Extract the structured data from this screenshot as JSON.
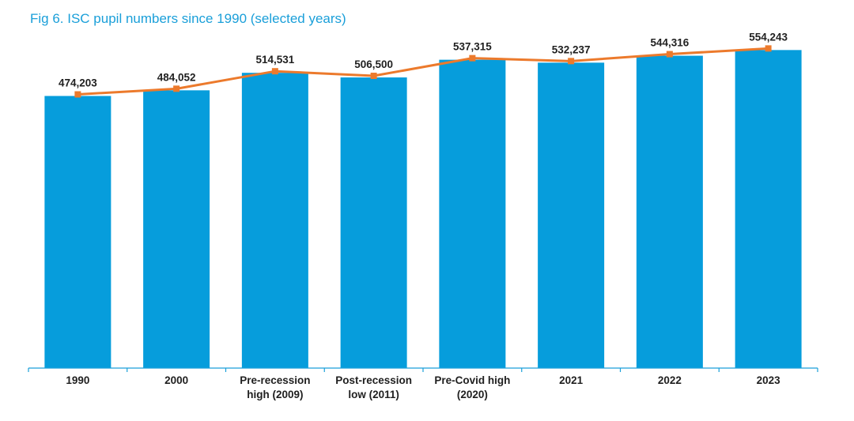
{
  "title": "Fig 6. ISC pupil numbers since 1990 (selected years)",
  "colors": {
    "bar": "#069ddc",
    "line": "#ec7a2c",
    "title": "#1a9fd9",
    "axis": "#1a9fd9"
  },
  "chart_data": {
    "type": "bar",
    "title": "Fig 6. ISC pupil numbers since 1990 (selected years)",
    "categories": [
      [
        "1990"
      ],
      [
        "2000"
      ],
      [
        "Pre-recession",
        "high (2009)"
      ],
      [
        "Post-recession",
        "low (2011)"
      ],
      [
        "Pre-Covid high",
        "(2020)"
      ],
      [
        "2021"
      ],
      [
        "2022"
      ],
      [
        "2023"
      ]
    ],
    "series": [
      {
        "type": "bar",
        "values": [
          474203,
          484052,
          514531,
          506500,
          537315,
          532237,
          544316,
          554243
        ]
      },
      {
        "type": "line",
        "values": [
          474203,
          484052,
          514531,
          506500,
          537315,
          532237,
          544316,
          554243
        ]
      }
    ],
    "value_labels": [
      "474,203",
      "484,052",
      "514,531",
      "506,500",
      "537,315",
      "532,237",
      "544,316",
      "554,243"
    ],
    "ylim": [
      0,
      585000
    ],
    "grid": false,
    "xlabel": "",
    "ylabel": ""
  }
}
